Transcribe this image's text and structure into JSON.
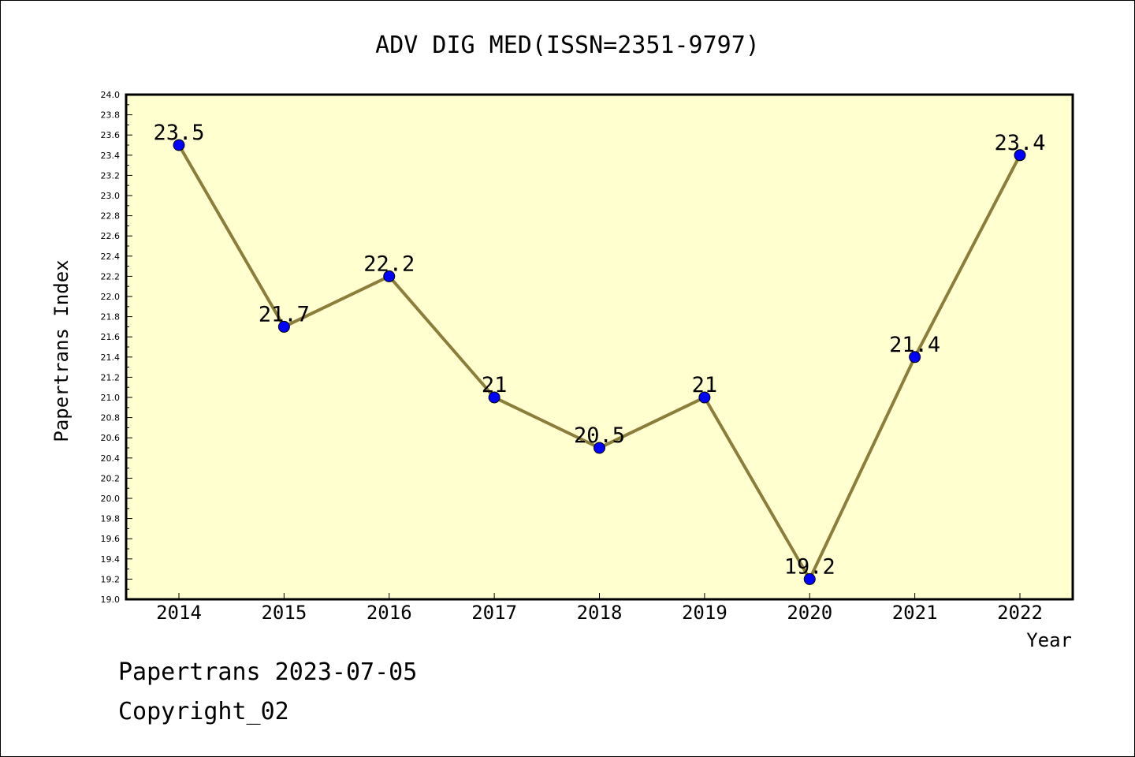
{
  "chart_data": {
    "type": "line",
    "title": "ADV DIG MED(ISSN=2351-9797)",
    "xlabel": "Year",
    "ylabel": "Papertrans Index",
    "ylim": [
      19.0,
      24.0
    ],
    "ytick_step": 0.2,
    "categories": [
      "2014",
      "2015",
      "2016",
      "2017",
      "2018",
      "2019",
      "2020",
      "2021",
      "2022"
    ],
    "values": [
      23.5,
      21.7,
      22.2,
      21,
      20.5,
      21,
      19.2,
      21.4,
      23.4
    ],
    "data_labels": [
      "23.5",
      "21.7",
      "22.2",
      "21",
      "20.5",
      "21",
      "19.2",
      "21.4",
      "23.4"
    ],
    "grid": false,
    "colors": {
      "plot_background": "#ffffd0",
      "line": "#8b7d3a",
      "marker": "#0000ff"
    }
  },
  "footer": {
    "line1": "Papertrans 2023-07-05",
    "line2": "Copyright_02"
  }
}
